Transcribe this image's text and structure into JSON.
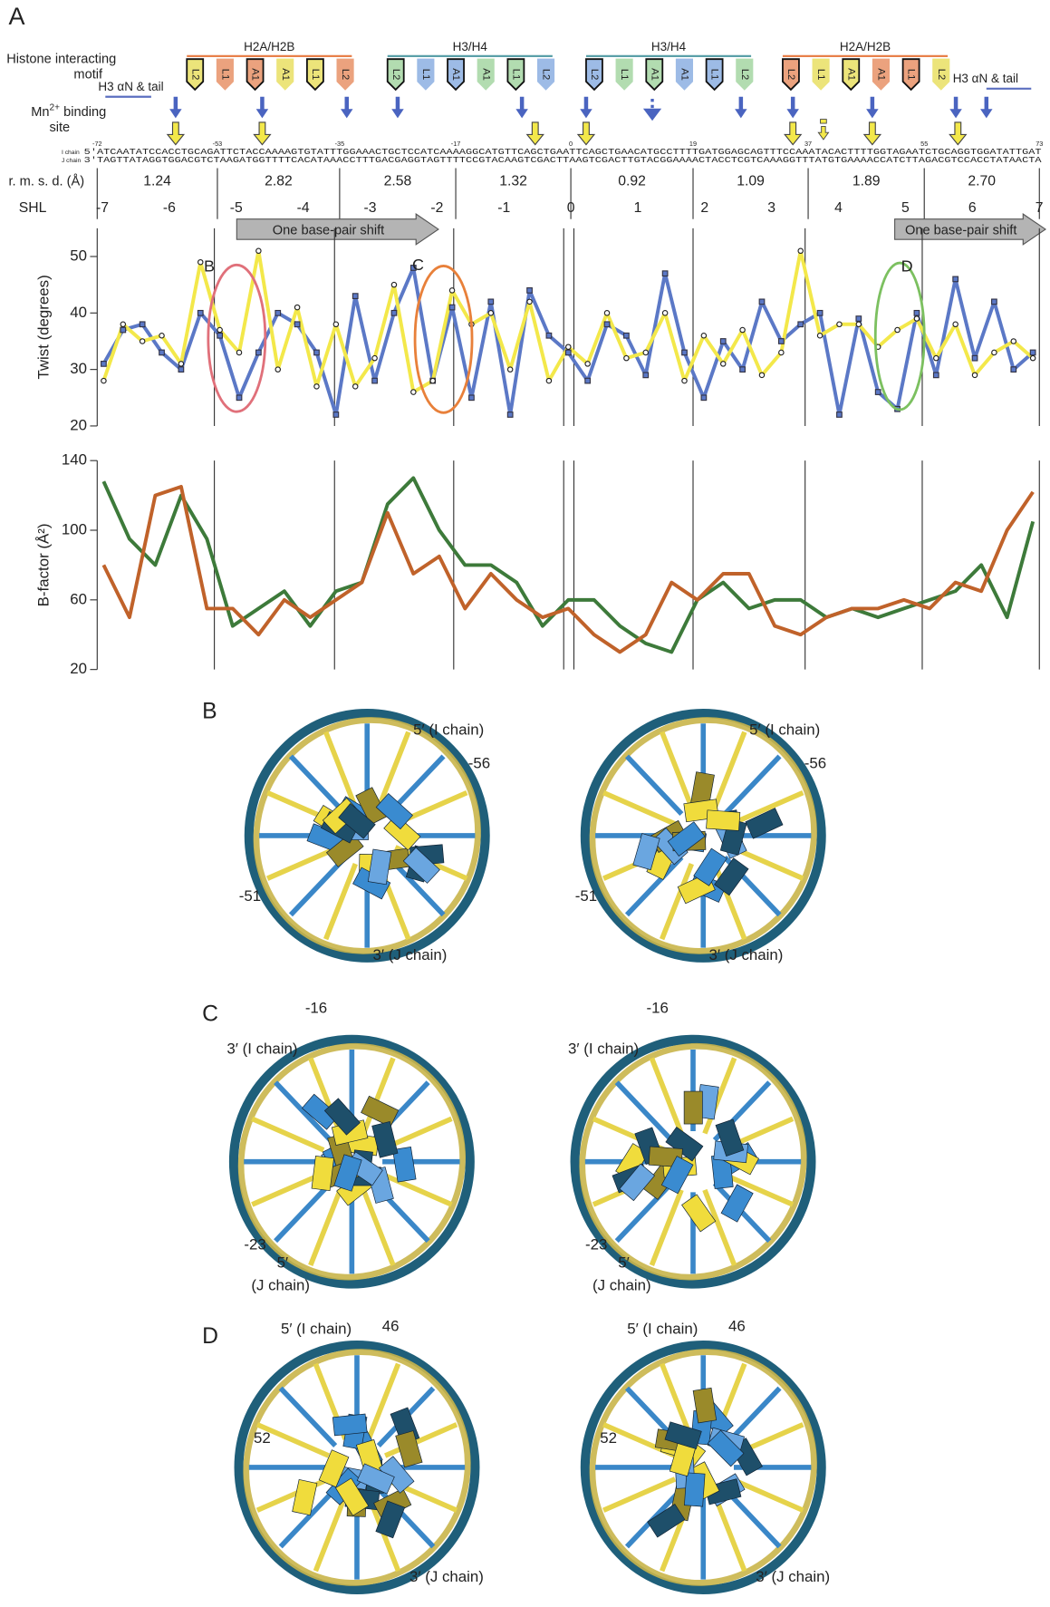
{
  "panel_a": {
    "label": "A",
    "motif_title": [
      "Histone interacting",
      "motif"
    ],
    "mn_title": {
      "line1": "Mn",
      "sup": "2+",
      "rest": " binding",
      "line2": "site"
    },
    "tail_label": "H3  αN & tail",
    "groups": [
      {
        "name": "H2A/H2B",
        "color": "#e8804a"
      },
      {
        "name": "H3/H4",
        "color": "#5aa0a8"
      },
      {
        "name": "H3/H4",
        "color": "#5aa0a8"
      },
      {
        "name": "H2A/H2B",
        "color": "#e8804a"
      }
    ],
    "motifs": [
      {
        "label": "L2",
        "color": "#ece47a"
      },
      {
        "label": "L1",
        "color": "#eba27e"
      },
      {
        "label": "A1",
        "color": "#eba27e"
      },
      {
        "label": "A1",
        "color": "#ece47a"
      },
      {
        "label": "L1",
        "color": "#ece47a"
      },
      {
        "label": "L2",
        "color": "#eba27e"
      },
      {
        "label": "L2",
        "color": "#b2dcb0"
      },
      {
        "label": "L1",
        "color": "#9dbbe6"
      },
      {
        "label": "A1",
        "color": "#9dbbe6"
      },
      {
        "label": "A1",
        "color": "#b2dcb0"
      },
      {
        "label": "L1",
        "color": "#b2dcb0"
      },
      {
        "label": "L2",
        "color": "#9dbbe6"
      },
      {
        "label": "L2",
        "color": "#9dbbe6"
      },
      {
        "label": "L1",
        "color": "#b2dcb0"
      },
      {
        "label": "A1",
        "color": "#b2dcb0"
      },
      {
        "label": "A1",
        "color": "#9dbbe6"
      },
      {
        "label": "L1",
        "color": "#9dbbe6"
      },
      {
        "label": "L2",
        "color": "#b2dcb0"
      },
      {
        "label": "L2",
        "color": "#eba27e"
      },
      {
        "label": "L1",
        "color": "#ece47a"
      },
      {
        "label": "A1",
        "color": "#ece47a"
      },
      {
        "label": "A1",
        "color": "#eba27e"
      },
      {
        "label": "L1",
        "color": "#eba27e"
      },
      {
        "label": "L2",
        "color": "#ece47a"
      }
    ],
    "sequence": {
      "i_label": "I chain",
      "j_label": "J chain",
      "i": "5'ATCAATATCCACCTGCAGATTCTACCAAAAGTGTATTTGGAAACTGCTCCATCAAAAGGCATGTTCAGCTGAATTCAGCTGAACATGCCTTTTGATGGAGCAGTTTCCAAATACACTTTTGGTAGAATCTGCAGGTGGATATTGAT",
      "j": "3'TAGTTATAGGTGGACGTCTAAGATGGTTTTCACATAAACCTTTGACGAGGTAGTTTTCCGTACAAGTCGACTTAAGTCGACTTGTACGGAAAACTACCTCGTCAAAGGTTTATGTGAAAACCATCTTAGACGTCCACCTATAACTA",
      "positions": [
        -72,
        -53,
        -35,
        -17,
        0,
        19,
        37,
        55,
        73
      ]
    },
    "rmsd_title": "r. m. s. d. (Å)",
    "rmsd": [
      "1.24",
      "2.82",
      "2.58",
      "1.32",
      "0.92",
      "1.09",
      "1.89",
      "2.70"
    ],
    "shl_title": "SHL",
    "shl": [
      -7,
      -6,
      -5,
      -4,
      -3,
      -2,
      -1,
      0,
      1,
      2,
      3,
      4,
      5,
      6,
      7
    ],
    "shift_label": "One base-pair shift"
  },
  "chart_data": [
    {
      "type": "line",
      "y_label": "Twist (degrees)",
      "x": [
        -72,
        -69,
        -66,
        -63,
        -60,
        -57,
        -54,
        -51,
        -48,
        -45,
        -42,
        -39,
        -36,
        -33,
        -30,
        -27,
        -24,
        -21,
        -18,
        -15,
        -12,
        -9,
        -6,
        -3,
        0,
        3,
        6,
        9,
        12,
        15,
        18,
        21,
        24,
        27,
        30,
        33,
        36,
        39,
        42,
        45,
        48,
        51,
        54,
        57,
        60,
        63,
        66,
        69,
        72
      ],
      "series": [
        {
          "color": "#5b78c6",
          "marker": "square",
          "values": [
            31,
            37,
            38,
            33,
            30,
            40,
            36,
            25,
            33,
            40,
            38,
            33,
            22,
            43,
            28,
            40,
            48,
            28,
            41,
            25,
            42,
            22,
            44,
            36,
            33,
            28,
            38,
            36,
            29,
            47,
            33,
            25,
            35,
            30,
            42,
            35,
            38,
            40,
            22,
            39,
            26,
            23,
            40,
            29,
            46,
            32,
            42,
            30,
            33
          ]
        },
        {
          "color": "#f3e84a",
          "marker": "circle",
          "values": [
            28,
            38,
            35,
            36,
            31,
            49,
            37,
            33,
            51,
            30,
            41,
            27,
            38,
            27,
            32,
            45,
            26,
            28,
            44,
            38,
            40,
            30,
            42,
            28,
            34,
            31,
            40,
            32,
            33,
            40,
            28,
            36,
            31,
            37,
            29,
            33,
            51,
            36,
            38,
            38,
            34,
            37,
            39,
            32,
            38,
            29,
            33,
            35,
            32
          ]
        }
      ],
      "xlim": [
        -73,
        73
      ],
      "ylim": [
        20,
        55
      ],
      "yticks": [
        20,
        30,
        40,
        50
      ],
      "annotations": [
        {
          "text": "B",
          "color": "#e0707a"
        },
        {
          "text": "C",
          "color": "#e8803a"
        },
        {
          "text": "D",
          "color": "#7cc060"
        }
      ]
    },
    {
      "type": "line",
      "y_label": "B-factor (Å²)",
      "x": [
        -72,
        -68,
        -64,
        -60,
        -56,
        -52,
        -48,
        -44,
        -40,
        -36,
        -32,
        -28,
        -24,
        -20,
        -16,
        -12,
        -8,
        -4,
        0,
        4,
        8,
        12,
        16,
        20,
        24,
        28,
        32,
        36,
        40,
        44,
        48,
        52,
        56,
        60,
        64,
        68,
        72
      ],
      "series": [
        {
          "color": "#3d7a3a",
          "marker": "none",
          "values": [
            128,
            95,
            80,
            120,
            95,
            45,
            55,
            65,
            45,
            65,
            70,
            115,
            130,
            100,
            80,
            80,
            70,
            45,
            60,
            60,
            45,
            35,
            30,
            60,
            70,
            55,
            60,
            60,
            50,
            55,
            50,
            55,
            60,
            65,
            80,
            50,
            105
          ]
        },
        {
          "color": "#c0622a",
          "marker": "none",
          "values": [
            80,
            50,
            120,
            125,
            55,
            55,
            40,
            60,
            50,
            60,
            70,
            110,
            75,
            85,
            55,
            75,
            60,
            50,
            55,
            40,
            30,
            40,
            70,
            60,
            75,
            75,
            45,
            40,
            50,
            55,
            55,
            60,
            55,
            70,
            65,
            100,
            122
          ]
        }
      ],
      "xlim": [
        -73,
        73
      ],
      "ylim": [
        20,
        140
      ],
      "yticks": [
        20,
        60,
        100,
        140
      ]
    }
  ],
  "panels": [
    {
      "label": "B",
      "texts": [
        "5′ (I chain)",
        "-56",
        "-51",
        "3′ (J chain)"
      ]
    },
    {
      "label": "C",
      "texts": [
        "-16",
        "3′ (I chain)",
        "-23",
        "5′",
        "(J chain)"
      ]
    },
    {
      "label": "D",
      "texts": [
        "5′ (I chain)",
        "46",
        "52",
        "3′ (J chain)"
      ]
    }
  ]
}
